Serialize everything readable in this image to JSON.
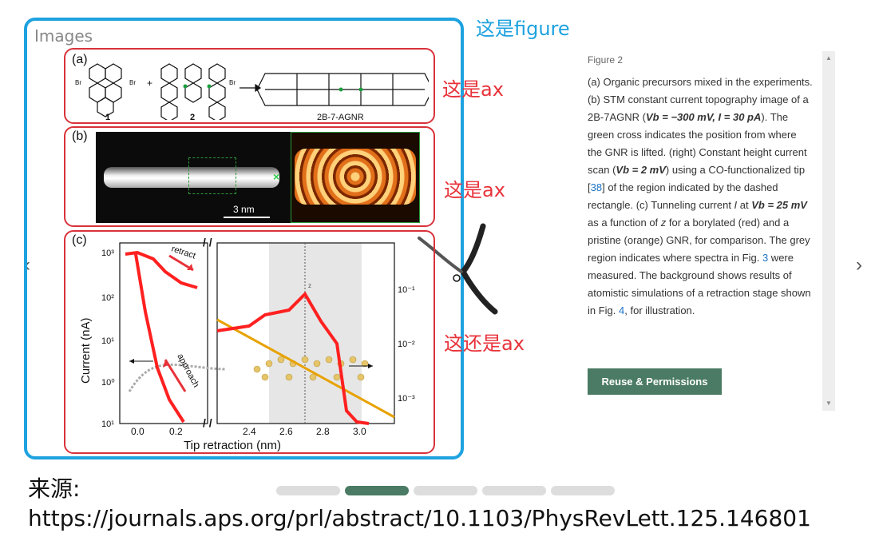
{
  "images_label": "Images",
  "annotations": {
    "figure": "这是figure",
    "ax1": "这是ax",
    "ax2": "这是ax",
    "ax3": "这还是ax"
  },
  "panel_a": {
    "letter": "(a)",
    "label1": "1",
    "label2": "2",
    "label3": "2B-7-AGNR",
    "br": "Br",
    "plus": "+"
  },
  "panel_b": {
    "letter": "(b)",
    "scale": "3 nm"
  },
  "panel_c": {
    "letter": "(c)",
    "ylabel": "Current (nA)",
    "xlabel": "Tip retraction (nm)",
    "retract": "retract",
    "approach": "approach",
    "zp": "z",
    "left_yticks": [
      "10³",
      "10²",
      "10¹",
      "10⁰",
      "10¹"
    ],
    "left_xticks": [
      "0.0",
      "0.2"
    ],
    "right_xticks": [
      "2.4",
      "2.6",
      "2.8",
      "3.0"
    ],
    "right_yticks": [
      "10⁻¹",
      "10⁻²",
      "10⁻³"
    ]
  },
  "caption": {
    "figure_num": "Figure 2",
    "t1": "(a) Organic precursors mixed in the experiments. (b) STM constant current topography image of a 2B-7AGNR (",
    "m1": "Vb = −300 mV, I = 30 pA",
    "t2": "). The green cross indicates the position from where the GNR is lifted. (right) Constant height current scan (",
    "m2": "Vb = 2 mV",
    "t3": ") using a CO-functionalized tip [",
    "ref38": "38",
    "t4": "] of the region indicated by the dashed rectangle. (c) Tunneling current ",
    "m3": "I",
    "t5": " at ",
    "m4": "Vb = 25 mV",
    "t6": " as a function of ",
    "m5": "z",
    "t7": " for a borylated (red) and a pristine (orange) GNR, for comparison. The grey region indicates where spectra in Fig. ",
    "ref3": "3",
    "t8": " were measured. The background shows results of atomistic simulations of a retraction stage shown in Fig. ",
    "ref4": "4",
    "t9": ", for illustration."
  },
  "reuse_button": "Reuse & Permissions",
  "source_label": "来源:",
  "source_url": "https://journals.aps.org/prl/abstract/10.1103/PhysRevLett.125.146801",
  "pager": {
    "count": 5,
    "active_index": 1
  },
  "colors": {
    "figure_border": "#1ea2e0",
    "ax_border": "#d9323a",
    "button": "#4b7b64"
  }
}
